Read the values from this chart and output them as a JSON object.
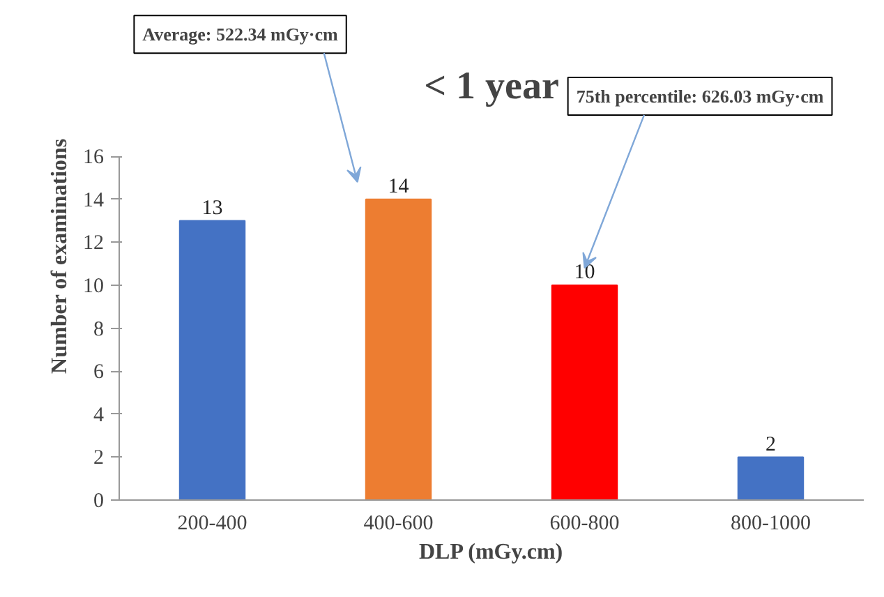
{
  "chart_data": {
    "type": "bar",
    "title": "< 1 year",
    "xlabel": "DLP (mGy.cm)",
    "ylabel": "Number of examinations",
    "categories": [
      "200-400",
      "400-600",
      "600-800",
      "800-1000"
    ],
    "values": [
      13,
      14,
      10,
      2
    ],
    "colors": [
      "#4472c4",
      "#ed7d31",
      "#ff0000",
      "#4472c4"
    ],
    "ylim": [
      0,
      16
    ],
    "yticks": [
      0,
      2,
      4,
      6,
      8,
      10,
      12,
      14,
      16
    ],
    "grid": false,
    "data_labels": true,
    "annotations": [
      "Average: 522.34 mGy·cm",
      "75th percentile: 626.03 mGy·cm"
    ]
  }
}
